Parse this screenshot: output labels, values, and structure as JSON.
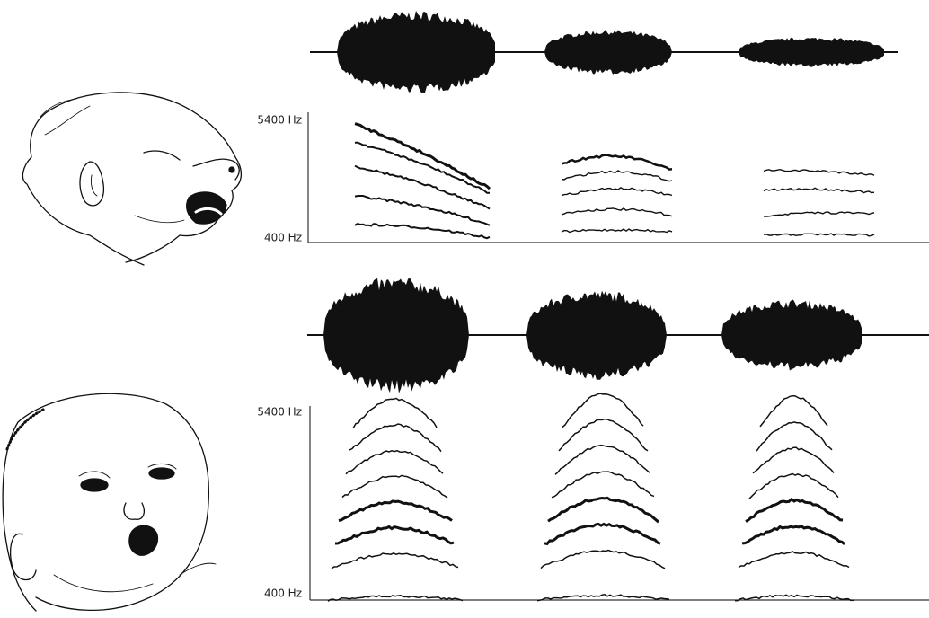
{
  "panels": [
    {
      "y_max_label": "5400 Hz",
      "y_min_label": "400 Hz"
    },
    {
      "y_max_label": "5400 Hz",
      "y_min_label": "400 Hz"
    }
  ]
}
